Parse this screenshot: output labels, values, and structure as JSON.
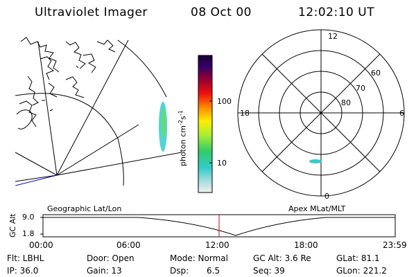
{
  "header": {
    "title": "Ultraviolet Imager",
    "date": "08 Oct 00",
    "time": "12:02:10 UT"
  },
  "colorbar": {
    "label": "photon cm",
    "label_sup1": "-2",
    "label_mid": "s",
    "label_sup2": "-1",
    "ticks": [
      "100",
      "10"
    ]
  },
  "polar_plot": {
    "mlt_labels": {
      "top": "12",
      "left": "18",
      "right": "6",
      "bottom": "0"
    },
    "mlat_labels": [
      "60",
      "70",
      "80"
    ]
  },
  "timeline": {
    "left_title": "Geographic Lat/Lon",
    "right_title": "Apex MLat/MLT",
    "y_axis_label": "GC Alt",
    "y_ticks": [
      "9.0",
      "1.8"
    ],
    "x_ticks": [
      "00:00",
      "06:00",
      "12:00",
      "18:00",
      "23:59"
    ]
  },
  "info": {
    "filter": "Flt: LBHL",
    "ip": "IP: 36.0",
    "door": "Door: Open",
    "gain": "Gain: 13",
    "mode": "Mode: Normal",
    "dsp_label": "Dsp:",
    "dsp_value": "6.5",
    "gc_alt": "GC Alt: 3.6 Re",
    "seq": "Seq: 39",
    "glat": "GLat: 81.1",
    "glon": "GLon: 221.2"
  },
  "colors": {
    "colorbar_top": "#1a0033",
    "colorbar_bottom": "#f0f0f0",
    "aurora": "#33cccc",
    "timeline_marker": "#cc0000",
    "coast_line": "#0000cc"
  }
}
